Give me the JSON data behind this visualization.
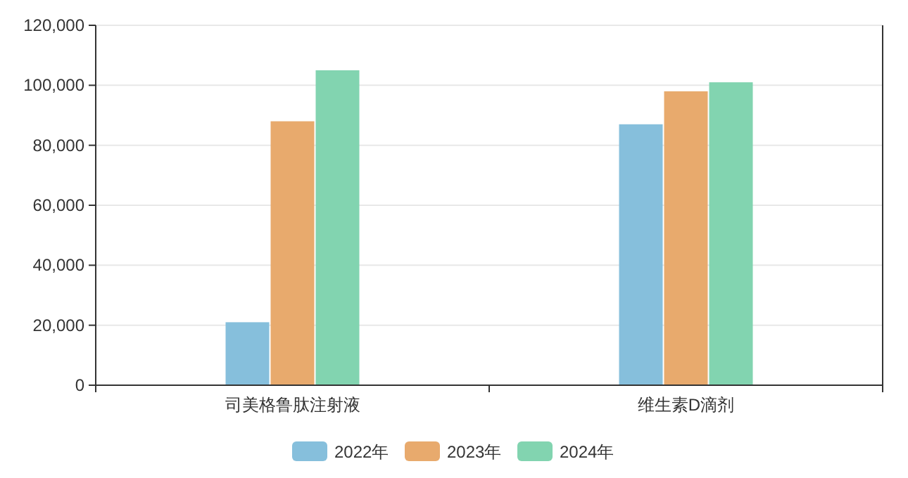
{
  "chart_data": {
    "type": "bar",
    "categories": [
      "司美格鲁肽注射液",
      "维生素D滴剂"
    ],
    "series": [
      {
        "name": "2022年",
        "color": "#86bfdc",
        "values": [
          21000,
          87000
        ]
      },
      {
        "name": "2023年",
        "color": "#e8aa6d",
        "values": [
          88000,
          98000
        ]
      },
      {
        "name": "2024年",
        "color": "#82d4b0",
        "values": [
          105000,
          101000
        ]
      }
    ],
    "ylim": [
      0,
      120000
    ],
    "yticks": [
      {
        "value": 0,
        "label": "0"
      },
      {
        "value": 20000,
        "label": "20,000"
      },
      {
        "value": 40000,
        "label": "40,000"
      },
      {
        "value": 60000,
        "label": "60,000"
      },
      {
        "value": 80000,
        "label": "80,000"
      },
      {
        "value": 100000,
        "label": "100,000"
      },
      {
        "value": 120000,
        "label": "120,000"
      }
    ],
    "grid": "y",
    "legend": "bottom"
  }
}
